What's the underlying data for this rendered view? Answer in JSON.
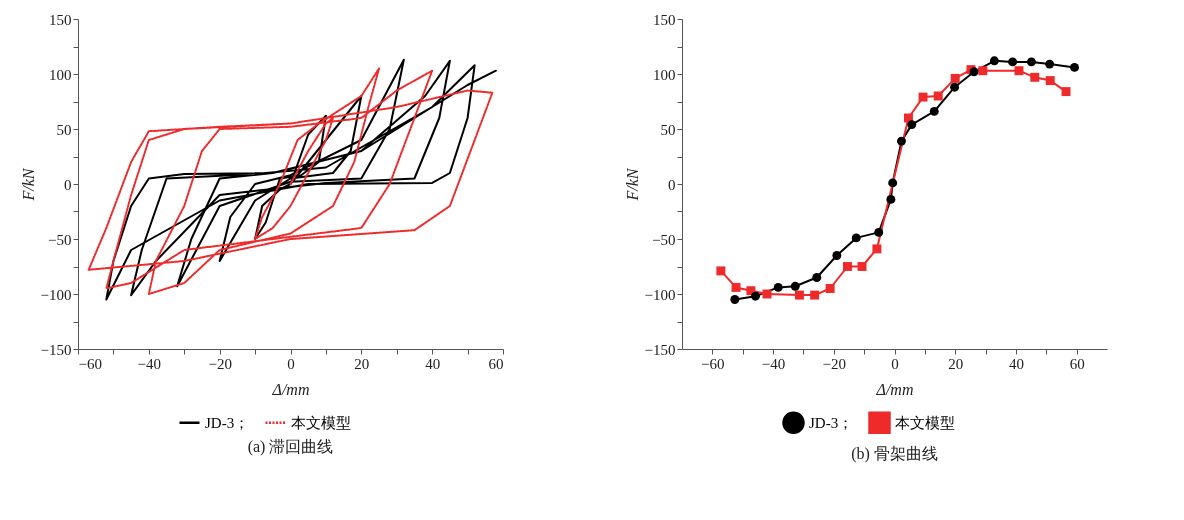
{
  "chart_data": [
    {
      "type": "line",
      "title": "(a) 滞回曲线",
      "xlabel": "Δ/mm",
      "ylabel": "F/kN",
      "xlim": [
        -60,
        60
      ],
      "ylim": [
        -150,
        150
      ],
      "xticks": [
        -60,
        {
          "value": -50,
          "label": null
        },
        -40,
        {
          "value": -30,
          "label": null
        },
        -20,
        {
          "value": -10,
          "label": null
        },
        0,
        {
          "value": 10,
          "label": null
        },
        20,
        {
          "value": 30,
          "label": null
        },
        40,
        {
          "value": 50,
          "label": null
        },
        60
      ],
      "yticks": [
        -150,
        {
          "value": -125,
          "label": null
        },
        -100,
        {
          "value": -75,
          "label": null
        },
        -50,
        {
          "value": -25,
          "label": null
        },
        0,
        {
          "value": 25,
          "label": null
        },
        50,
        {
          "value": 75,
          "label": null
        },
        100,
        {
          "value": 125,
          "label": null
        },
        150
      ],
      "legend": "bottom",
      "grid": false,
      "series": [
        {
          "name": "JD-3；",
          "color": "#000000",
          "line_style": "solid",
          "marker": "none",
          "x": [
            0,
            5,
            10,
            8,
            3,
            -3,
            -7,
            -10,
            -8,
            -3,
            0,
            10,
            20,
            17,
            12,
            0,
            -10,
            -20,
            -17,
            -10,
            0,
            20,
            32,
            28,
            20,
            0,
            -20,
            -32,
            -28,
            -20,
            -5,
            20,
            38,
            45,
            42,
            35,
            10,
            -20,
            -38,
            -45,
            -42,
            -35,
            -10,
            10,
            40,
            52,
            50,
            45,
            40,
            5,
            -20,
            -45,
            -52,
            -50,
            -45,
            -40,
            -30,
            -5,
            20,
            50,
            58
          ],
          "values": [
            0,
            45,
            62,
            20,
            8,
            5,
            -35,
            -50,
            -20,
            -5,
            0,
            40,
            80,
            30,
            10,
            5,
            -15,
            -70,
            -30,
            0,
            8,
            40,
            113,
            50,
            5,
            2,
            -20,
            -93,
            -50,
            5,
            10,
            30,
            80,
            112,
            60,
            5,
            1,
            -10,
            -70,
            -101,
            -60,
            5,
            9,
            15,
            70,
            108,
            60,
            10,
            1,
            0,
            -15,
            -60,
            -105,
            -70,
            -20,
            5,
            9,
            10,
            30,
            90,
            103
          ]
        },
        {
          "name": "本文模型",
          "color": "#ee2a2a",
          "line_style": "dotted",
          "marker": "none",
          "x": [
            0,
            5,
            10,
            12,
            10,
            5,
            0,
            -5,
            -10,
            -8,
            -3,
            2,
            8,
            20,
            25,
            22,
            18,
            12,
            0,
            -20,
            -30,
            -40,
            -38,
            -30,
            -25,
            -20,
            0,
            20,
            30,
            40,
            35,
            28,
            20,
            0,
            -30,
            -45,
            -52,
            -50,
            -45,
            -40,
            -30,
            0,
            30,
            50,
            57,
            52,
            45,
            35,
            0,
            -30,
            -57,
            -52,
            -45,
            -40,
            -20,
            0
          ],
          "values": [
            0,
            30,
            55,
            60,
            40,
            10,
            -20,
            -40,
            -50,
            -30,
            0,
            40,
            55,
            80,
            105,
            70,
            20,
            -20,
            -45,
            -60,
            -90,
            -100,
            -70,
            -20,
            30,
            50,
            52,
            60,
            85,
            103,
            60,
            0,
            -40,
            -48,
            -60,
            -90,
            -95,
            -70,
            -10,
            40,
            50,
            55,
            70,
            85,
            83,
            40,
            -20,
            -42,
            -50,
            -70,
            -78,
            -40,
            20,
            48,
            52,
            55
          ]
        }
      ]
    },
    {
      "type": "line",
      "title": "(b) 骨架曲线",
      "xlabel": "Δ/mm",
      "ylabel": "F/kN",
      "xlim": [
        -70,
        70
      ],
      "ylim": [
        -150,
        150
      ],
      "xticks": [
        -60,
        {
          "value": -50,
          "label": null
        },
        -40,
        {
          "value": -30,
          "label": null
        },
        -20,
        {
          "value": -10,
          "label": null
        },
        0,
        {
          "value": 10,
          "label": null
        },
        20,
        {
          "value": 30,
          "label": null
        },
        40,
        {
          "value": 50,
          "label": null
        },
        60
      ],
      "yticks": [
        -150,
        {
          "value": -125,
          "label": null
        },
        -100,
        {
          "value": -75,
          "label": null
        },
        -50,
        {
          "value": -25,
          "label": null
        },
        0,
        {
          "value": 25,
          "label": null
        },
        50,
        {
          "value": 75,
          "label": null
        },
        100,
        {
          "value": 125,
          "label": null
        },
        150
      ],
      "legend": "bottom",
      "grid": false,
      "series": [
        {
          "name": "JD-3；",
          "color": "#000000",
          "line_style": "solid",
          "marker": "circle",
          "x": [
            -52.6,
            -45.8,
            -38.3,
            -32.7,
            -25.6,
            -19.0,
            -12.6,
            -5.2,
            -1.2,
            -0.6,
            2.3,
            5.7,
            13.1,
            19.8,
            26.2,
            32.9,
            38.9,
            45.1,
            51.1,
            59.3
          ],
          "values": [
            -105,
            -102,
            -94,
            -93,
            -85,
            -65,
            -49,
            -44,
            -14,
            1,
            39,
            54,
            66,
            88,
            102,
            112,
            111,
            111,
            109,
            106
          ]
        },
        {
          "name": "本文模型",
          "color": "#ee2a2a",
          "line_style": "solid",
          "marker": "square",
          "x": [
            -57.2,
            -52.2,
            -47.3,
            -42.0,
            -31.3,
            -26.3,
            -21.2,
            -15.5,
            -10.7,
            -5.8,
            4.6,
            9.4,
            14.4,
            20.0,
            25.2,
            29.1,
            41.0,
            46.2,
            51.3,
            56.5
          ],
          "values": [
            -79,
            -94,
            -97,
            -100,
            -101,
            -101,
            -95,
            -75,
            -75,
            -59,
            60,
            79,
            80,
            96,
            104,
            103,
            103,
            97,
            94,
            84
          ]
        }
      ]
    }
  ]
}
